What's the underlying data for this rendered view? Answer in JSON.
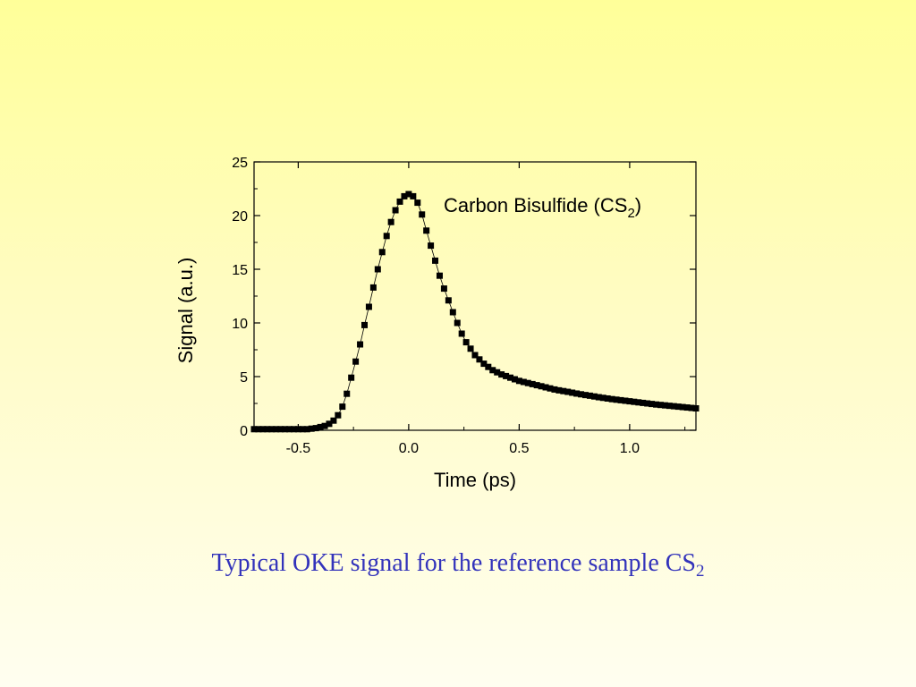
{
  "chart_data": {
    "type": "scatter",
    "xlabel": "Time (ps)",
    "ylabel": "Signal (a.u.)",
    "xlim": [
      -0.7,
      1.3
    ],
    "ylim": [
      0,
      25
    ],
    "xticks": [
      -0.5,
      0.0,
      0.5,
      1.0
    ],
    "xtick_labels": [
      "-0.5",
      "0.0",
      "0.5",
      "1.0"
    ],
    "yticks": [
      0,
      5,
      10,
      15,
      20,
      25
    ],
    "ytick_labels": [
      "0",
      "5",
      "10",
      "15",
      "20",
      "25"
    ],
    "annotation": {
      "text": "Carbon Bisulfide (CS",
      "subscript": "2",
      "suffix": ")"
    },
    "grid": false,
    "marker": "square",
    "color": "#000000",
    "series": [
      {
        "x": [
          -0.7,
          -0.68,
          -0.66,
          -0.64,
          -0.62,
          -0.6,
          -0.58,
          -0.56,
          -0.54,
          -0.52,
          -0.5,
          -0.48,
          -0.46,
          -0.44,
          -0.42,
          -0.4,
          -0.38,
          -0.36,
          -0.34,
          -0.32,
          -0.3,
          -0.28,
          -0.26,
          -0.24,
          -0.22,
          -0.2,
          -0.18,
          -0.16,
          -0.14,
          -0.12,
          -0.1,
          -0.08,
          -0.06,
          -0.04,
          -0.02,
          0.0,
          0.02,
          0.04,
          0.06,
          0.08,
          0.1,
          0.12,
          0.14,
          0.16,
          0.18,
          0.2,
          0.22,
          0.24,
          0.26,
          0.28,
          0.3,
          0.32,
          0.34,
          0.36,
          0.38,
          0.4,
          0.42,
          0.44,
          0.46,
          0.48,
          0.5,
          0.52,
          0.54,
          0.56,
          0.58,
          0.6,
          0.62,
          0.64,
          0.66,
          0.68,
          0.7,
          0.72,
          0.74,
          0.76,
          0.78,
          0.8,
          0.82,
          0.84,
          0.86,
          0.88,
          0.9,
          0.92,
          0.94,
          0.96,
          0.98,
          1.0,
          1.02,
          1.04,
          1.06,
          1.08,
          1.1,
          1.12,
          1.14,
          1.16,
          1.18,
          1.2,
          1.22,
          1.24,
          1.26,
          1.28,
          1.3
        ],
        "y": [
          0.1,
          0.1,
          0.1,
          0.1,
          0.1,
          0.1,
          0.1,
          0.1,
          0.1,
          0.1,
          0.1,
          0.1,
          0.1,
          0.15,
          0.2,
          0.3,
          0.4,
          0.6,
          0.9,
          1.4,
          2.2,
          3.4,
          4.9,
          6.4,
          8.0,
          9.8,
          11.5,
          13.3,
          15.0,
          16.6,
          18.1,
          19.4,
          20.5,
          21.3,
          21.8,
          22.0,
          21.8,
          21.2,
          20.1,
          18.6,
          17.2,
          15.8,
          14.4,
          13.2,
          12.1,
          11.0,
          10.0,
          9.0,
          8.2,
          7.6,
          7.0,
          6.6,
          6.2,
          5.9,
          5.6,
          5.4,
          5.2,
          5.05,
          4.9,
          4.75,
          4.6,
          4.5,
          4.4,
          4.3,
          4.2,
          4.1,
          4.0,
          3.9,
          3.8,
          3.72,
          3.65,
          3.58,
          3.5,
          3.42,
          3.35,
          3.28,
          3.22,
          3.15,
          3.08,
          3.02,
          2.96,
          2.9,
          2.85,
          2.8,
          2.75,
          2.7,
          2.65,
          2.6,
          2.55,
          2.5,
          2.45,
          2.4,
          2.36,
          2.32,
          2.28,
          2.24,
          2.2,
          2.16,
          2.12,
          2.08,
          2.04
        ]
      }
    ]
  },
  "caption": {
    "text": "Typical OKE signal for the reference sample CS",
    "subscript": "2"
  }
}
